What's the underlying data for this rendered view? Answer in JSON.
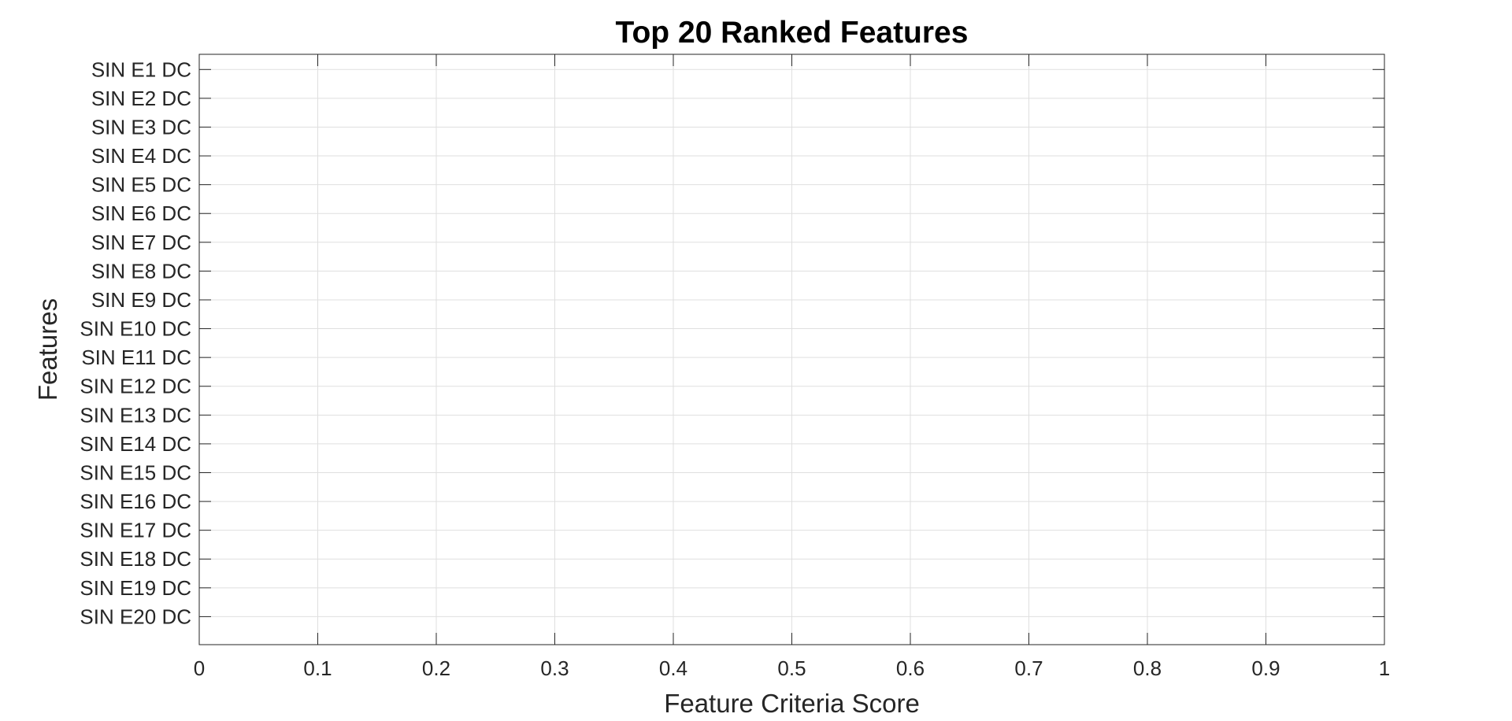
{
  "chart_data": {
    "type": "bar",
    "orientation": "horizontal",
    "title": "Top 20 Ranked Features",
    "xlabel": "Feature Criteria Score",
    "ylabel": "Features",
    "xlim": [
      0,
      1
    ],
    "xticks": [
      0,
      0.1,
      0.2,
      0.3,
      0.4,
      0.5,
      0.6,
      0.7,
      0.8,
      0.9,
      1
    ],
    "xtick_labels": [
      "0",
      "0.1",
      "0.2",
      "0.3",
      "0.4",
      "0.5",
      "0.6",
      "0.7",
      "0.8",
      "0.9",
      "1"
    ],
    "categories": [
      "SIN E1 DC",
      "SIN E2 DC",
      "SIN E3 DC",
      "SIN E4 DC",
      "SIN E5 DC",
      "SIN E6 DC",
      "SIN E7 DC",
      "SIN E8 DC",
      "SIN E9 DC",
      "SIN E10 DC",
      "SIN E11 DC",
      "SIN E12 DC",
      "SIN E13 DC",
      "SIN E14 DC",
      "SIN E15 DC",
      "SIN E16 DC",
      "SIN E17 DC",
      "SIN E18 DC",
      "SIN E19 DC",
      "SIN E20 DC"
    ],
    "values": [
      0,
      0,
      0,
      0,
      0,
      0,
      0,
      0,
      0,
      0,
      0,
      0,
      0,
      0,
      0,
      0,
      0,
      0,
      0,
      0
    ],
    "grid": true,
    "colors": {
      "axis": "#262626",
      "grid": "#dfdfdf",
      "bar": "#0072bd",
      "text": "#262626",
      "title": "#000000"
    }
  }
}
